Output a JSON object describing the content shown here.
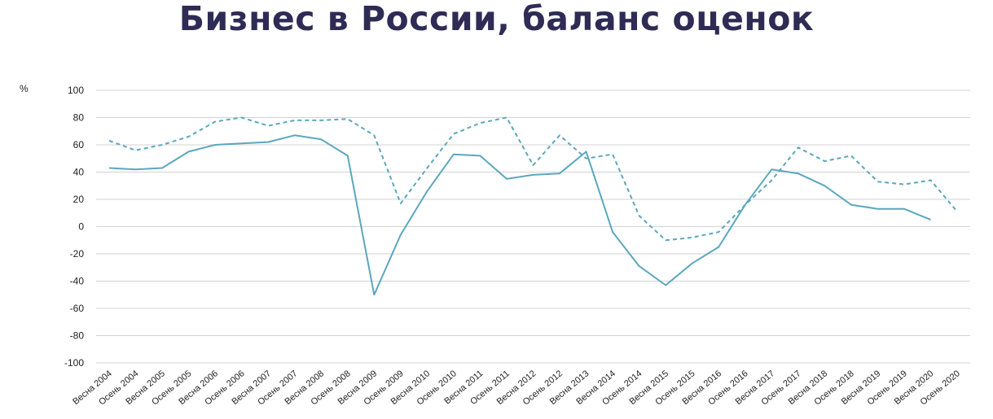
{
  "chart_data": {
    "type": "line",
    "title": "Бизнес в России, баланс оценок",
    "ylabel": "%",
    "xlabel": "",
    "ylim": [
      -100,
      100
    ],
    "yticks": [
      100,
      80,
      60,
      40,
      20,
      0,
      -20,
      -40,
      -60,
      -80,
      -100
    ],
    "grid": true,
    "legend": "none",
    "categories": [
      "Весна 2004",
      "Осень 2004",
      "Весна 2005",
      "Осень 2005",
      "Весна 2006",
      "Осень 2006",
      "Весна 2007",
      "Осень 2007",
      "Весна 2008",
      "Осень 2008",
      "Весна 2009",
      "Осень 2009",
      "Весна 2010",
      "Осень 2010",
      "Весна 2011",
      "Осень 2011",
      "Весна 2012",
      "Осень 2012",
      "Весна 2013",
      "Весна 2014",
      "Осень 2014",
      "Весна 2015",
      "Осень 2015",
      "Весна 2016",
      "Осень 2016",
      "Весна 2017",
      "Осень 2017",
      "Весна 2018",
      "Осень 2018",
      "Весна 2019",
      "Осень 2019",
      "Весна 2020",
      "Осень 2020"
    ],
    "series": [
      {
        "style": "solid",
        "color": "#5ba7be",
        "values": [
          43,
          42,
          43,
          55,
          60,
          61,
          62,
          67,
          64,
          52,
          -50,
          -6,
          26,
          53,
          52,
          35,
          38,
          39,
          55,
          -4,
          -29,
          -43,
          -27,
          -15,
          16,
          42,
          39,
          30,
          16,
          13,
          13,
          5,
          null
        ]
      },
      {
        "style": "dashed",
        "color": "#5ba7be",
        "values": [
          63,
          56,
          60,
          66,
          77,
          80,
          74,
          78,
          78,
          79,
          67,
          17,
          43,
          68,
          76,
          80,
          45,
          67,
          50,
          53,
          8,
          -10,
          -8,
          -4,
          16,
          34,
          58,
          48,
          52,
          33,
          31,
          34,
          11
        ]
      }
    ]
  }
}
